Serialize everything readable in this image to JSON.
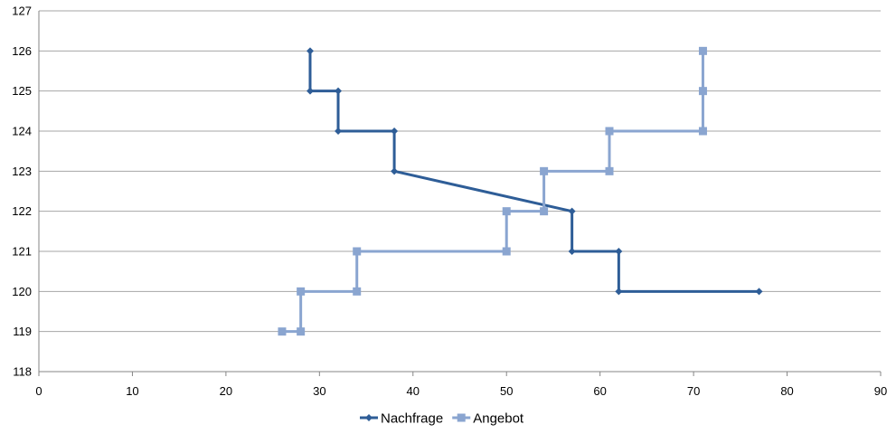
{
  "chart_data": {
    "type": "line",
    "xlim": [
      0,
      90
    ],
    "ylim": [
      118,
      127
    ],
    "xticks": [
      0,
      10,
      20,
      30,
      40,
      50,
      60,
      70,
      80,
      90
    ],
    "yticks": [
      118,
      119,
      120,
      121,
      122,
      123,
      124,
      125,
      126,
      127
    ],
    "grid": "horizontal",
    "legend": "bottom",
    "series": [
      {
        "name": "Nachfrage",
        "color": "#2e5d97",
        "marker": "diamond",
        "x": [
          29,
          29,
          32,
          32,
          38,
          38,
          57,
          57,
          62,
          62,
          77
        ],
        "y": [
          126,
          125,
          125,
          124,
          124,
          123,
          122,
          121,
          121,
          120,
          120
        ]
      },
      {
        "name": "Angebot",
        "color": "#8aa5d0",
        "marker": "square",
        "x": [
          26,
          28,
          28,
          34,
          34,
          50,
          50,
          54,
          54,
          61,
          61,
          71,
          71,
          71
        ],
        "y": [
          119,
          119,
          120,
          120,
          121,
          121,
          122,
          122,
          123,
          123,
          124,
          124,
          125,
          126
        ]
      }
    ]
  }
}
